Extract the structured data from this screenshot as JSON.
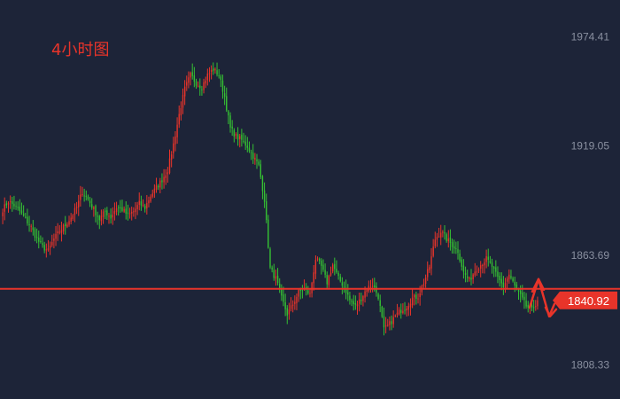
{
  "colors": {
    "background": "#1d2438",
    "up": "#e8342a",
    "down": "#35c033",
    "price_line": "#e8342a",
    "label_bg": "#e8342a",
    "tick_text": "#8a90a0",
    "title": "#e8342a"
  },
  "chart_data": {
    "type": "candlestick",
    "title": "4小时图",
    "xlabel": "",
    "ylabel": "",
    "ylim": [
      1791,
      1993
    ],
    "grid": false,
    "legend": "none",
    "y_ticks": [
      {
        "value": 1974.41,
        "label": "1974.41"
      },
      {
        "value": 1919.05,
        "label": "1919.05"
      },
      {
        "value": 1863.69,
        "label": "1863.69"
      },
      {
        "value": 1808.33,
        "label": "1808.33"
      }
    ],
    "last_price": {
      "value": 1840.92,
      "label": "1840.92"
    },
    "annotation_icon": "red-double-arrow-icon",
    "close_path": [
      1887,
      1891,
      1889,
      1886,
      1882,
      1878,
      1872,
      1868,
      1866,
      1872,
      1876,
      1879,
      1883,
      1888,
      1896,
      1892,
      1887,
      1882,
      1886,
      1883,
      1888,
      1887,
      1884,
      1886,
      1890,
      1888,
      1894,
      1898,
      1902,
      1907,
      1920,
      1935,
      1948,
      1955,
      1951,
      1949,
      1955,
      1958,
      1955,
      1944,
      1928,
      1924,
      1922,
      1919,
      1914,
      1909,
      1892,
      1857,
      1852,
      1842,
      1834,
      1839,
      1845,
      1847,
      1844,
      1862,
      1858,
      1850,
      1859,
      1852,
      1848,
      1841,
      1838,
      1842,
      1847,
      1849,
      1843,
      1826,
      1829,
      1833,
      1836,
      1838,
      1842,
      1843,
      1850,
      1858,
      1872,
      1876,
      1872,
      1869,
      1866,
      1855,
      1851,
      1856,
      1859,
      1862,
      1858,
      1852,
      1848,
      1854,
      1848,
      1843,
      1838,
      1836,
      1840.92
    ]
  }
}
